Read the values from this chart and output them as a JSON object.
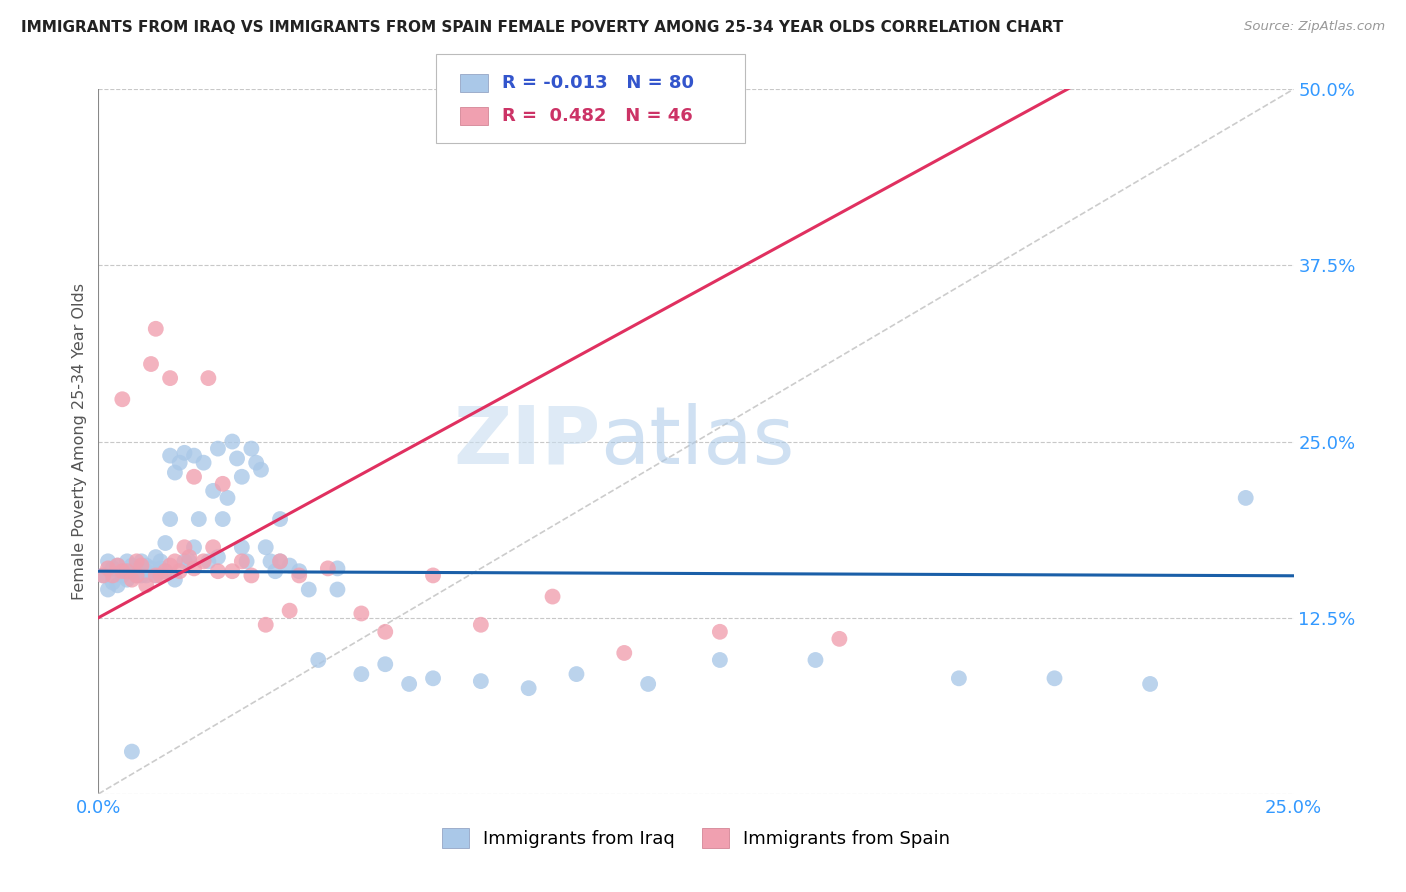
{
  "title": "IMMIGRANTS FROM IRAQ VS IMMIGRANTS FROM SPAIN FEMALE POVERTY AMONG 25-34 YEAR OLDS CORRELATION CHART",
  "source": "Source: ZipAtlas.com",
  "ylabel": "Female Poverty Among 25-34 Year Olds",
  "xlim": [
    0.0,
    0.25
  ],
  "ylim": [
    0.0,
    0.5
  ],
  "yticks_right": [
    0.0,
    0.125,
    0.25,
    0.375,
    0.5
  ],
  "yticklabels_right": [
    "",
    "12.5%",
    "25.0%",
    "37.5%",
    "50.0%"
  ],
  "grid_color": "#c8c8c8",
  "background_color": "#ffffff",
  "legend_R_iraq": "-0.013",
  "legend_N_iraq": "80",
  "legend_R_spain": "0.482",
  "legend_N_spain": "46",
  "iraq_color": "#aac8e8",
  "spain_color": "#f0a0b0",
  "iraq_line_color": "#1a5fa8",
  "spain_line_color": "#e03060",
  "diagonal_color": "#cccccc",
  "iraq_slope": -0.013,
  "iraq_intercept": 0.158,
  "spain_slope": 1.85,
  "spain_intercept": 0.125,
  "iraq_points_x": [
    0.001,
    0.002,
    0.002,
    0.003,
    0.003,
    0.004,
    0.004,
    0.005,
    0.005,
    0.006,
    0.006,
    0.007,
    0.007,
    0.008,
    0.008,
    0.009,
    0.009,
    0.01,
    0.01,
    0.011,
    0.012,
    0.012,
    0.013,
    0.013,
    0.014,
    0.014,
    0.015,
    0.015,
    0.016,
    0.016,
    0.017,
    0.018,
    0.019,
    0.02,
    0.02,
    0.021,
    0.022,
    0.023,
    0.024,
    0.025,
    0.026,
    0.027,
    0.028,
    0.029,
    0.03,
    0.031,
    0.032,
    0.033,
    0.034,
    0.035,
    0.036,
    0.037,
    0.038,
    0.04,
    0.042,
    0.044,
    0.046,
    0.05,
    0.055,
    0.06,
    0.065,
    0.07,
    0.08,
    0.09,
    0.1,
    0.115,
    0.13,
    0.15,
    0.18,
    0.2,
    0.22,
    0.24,
    0.007,
    0.01,
    0.013,
    0.018,
    0.025,
    0.03,
    0.038,
    0.05
  ],
  "iraq_points_y": [
    0.155,
    0.145,
    0.165,
    0.15,
    0.16,
    0.148,
    0.162,
    0.155,
    0.158,
    0.152,
    0.165,
    0.158,
    0.162,
    0.155,
    0.16,
    0.165,
    0.155,
    0.158,
    0.162,
    0.16,
    0.168,
    0.155,
    0.16,
    0.165,
    0.158,
    0.178,
    0.195,
    0.24,
    0.152,
    0.228,
    0.235,
    0.242,
    0.165,
    0.175,
    0.24,
    0.195,
    0.235,
    0.165,
    0.215,
    0.245,
    0.195,
    0.21,
    0.25,
    0.238,
    0.225,
    0.165,
    0.245,
    0.235,
    0.23,
    0.175,
    0.165,
    0.158,
    0.195,
    0.162,
    0.158,
    0.145,
    0.095,
    0.145,
    0.085,
    0.092,
    0.078,
    0.082,
    0.08,
    0.075,
    0.085,
    0.078,
    0.095,
    0.095,
    0.082,
    0.082,
    0.078,
    0.21,
    0.03,
    0.155,
    0.158,
    0.165,
    0.168,
    0.175,
    0.165,
    0.16
  ],
  "spain_points_x": [
    0.001,
    0.002,
    0.003,
    0.004,
    0.005,
    0.005,
    0.006,
    0.007,
    0.008,
    0.008,
    0.009,
    0.01,
    0.011,
    0.012,
    0.012,
    0.013,
    0.014,
    0.015,
    0.015,
    0.016,
    0.017,
    0.018,
    0.019,
    0.02,
    0.02,
    0.022,
    0.023,
    0.024,
    0.025,
    0.026,
    0.028,
    0.03,
    0.032,
    0.035,
    0.038,
    0.04,
    0.042,
    0.048,
    0.055,
    0.06,
    0.07,
    0.08,
    0.095,
    0.11,
    0.13,
    0.155
  ],
  "spain_points_y": [
    0.155,
    0.16,
    0.155,
    0.162,
    0.158,
    0.28,
    0.158,
    0.152,
    0.155,
    0.165,
    0.162,
    0.148,
    0.305,
    0.155,
    0.33,
    0.155,
    0.158,
    0.162,
    0.295,
    0.165,
    0.158,
    0.175,
    0.168,
    0.16,
    0.225,
    0.165,
    0.295,
    0.175,
    0.158,
    0.22,
    0.158,
    0.165,
    0.155,
    0.12,
    0.165,
    0.13,
    0.155,
    0.16,
    0.128,
    0.115,
    0.155,
    0.12,
    0.14,
    0.1,
    0.115,
    0.11
  ]
}
